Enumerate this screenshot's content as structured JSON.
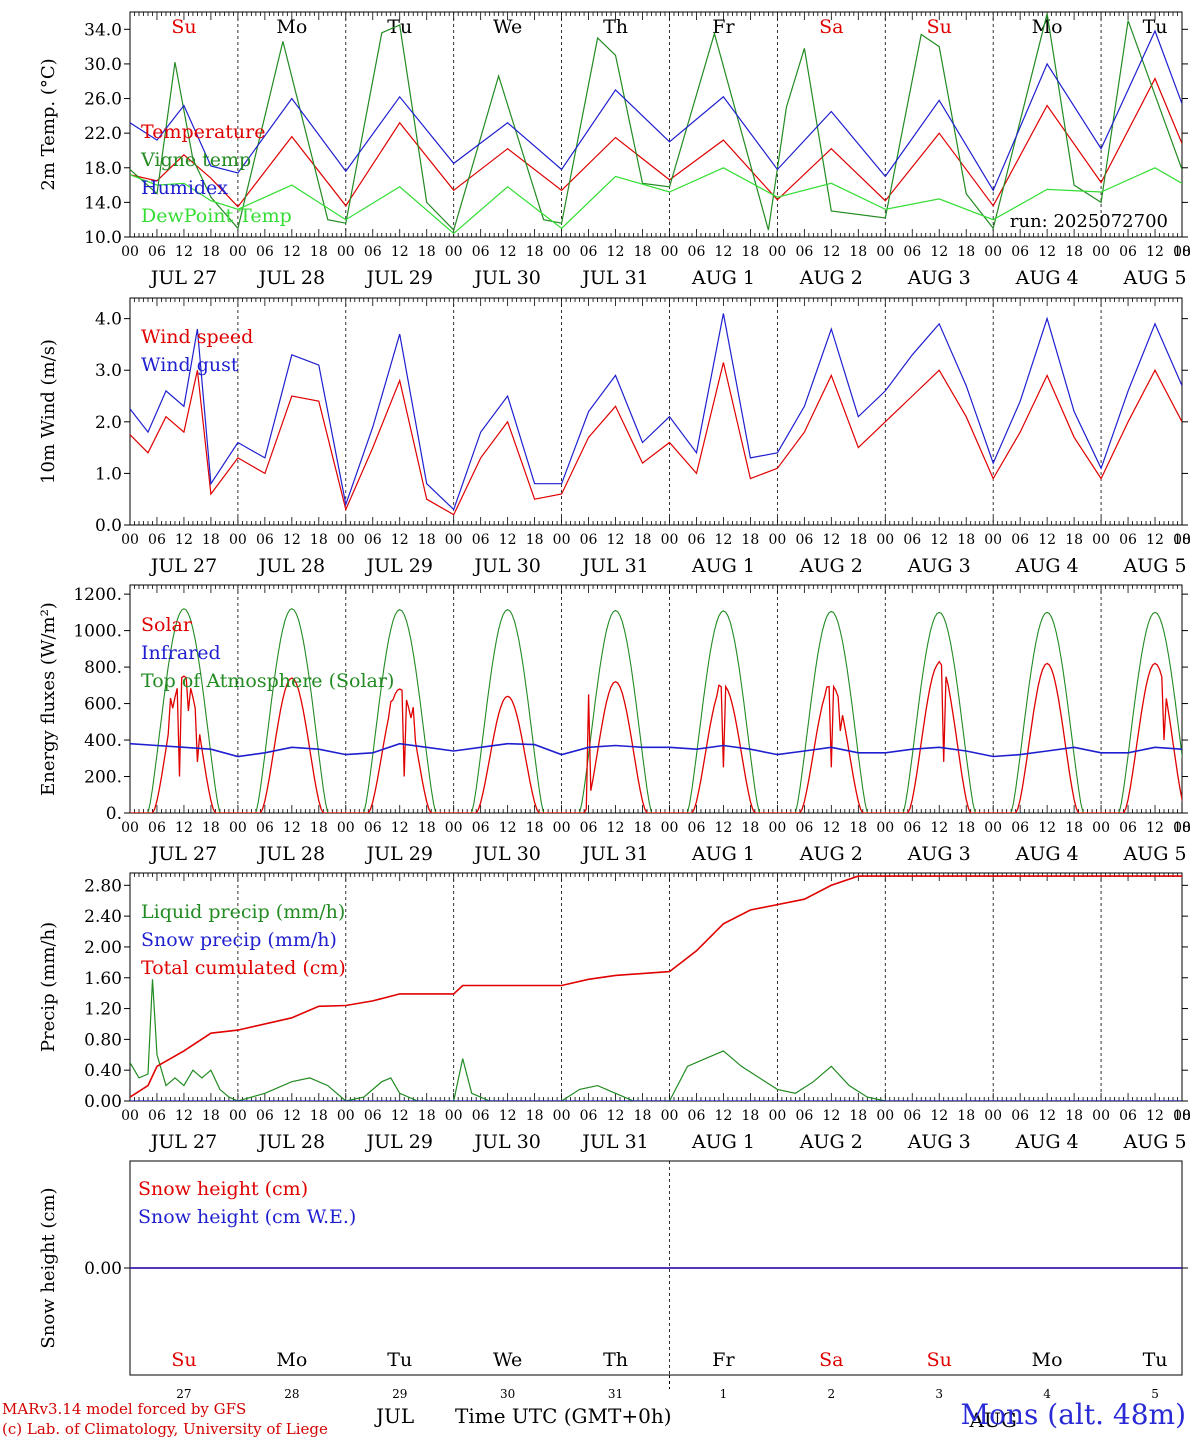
{
  "days": {
    "weekday_labels": [
      "Su",
      "Mo",
      "Tu",
      "We",
      "Th",
      "Fr",
      "Sa",
      "Su",
      "Mo",
      "Tu"
    ],
    "weekday_colors": [
      "#e00000",
      "#000000",
      "#000000",
      "#000000",
      "#000000",
      "#000000",
      "#e00000",
      "#e00000",
      "#000000",
      "#000000"
    ],
    "date_labels": [
      "JUL 27",
      "JUL 28",
      "JUL 29",
      "JUL 30",
      "JUL 31",
      "AUG  1",
      "AUG  2",
      "AUG  3",
      "AUG  4",
      "AUG  5"
    ],
    "hour_ticks": [
      "00",
      "06",
      "12",
      "18"
    ],
    "day_numbers": [
      "27",
      "28",
      "29",
      "30",
      "31",
      "1",
      "2",
      "3",
      "4",
      "5"
    ],
    "month_labels": [
      "JUL",
      "AUG"
    ]
  },
  "chart_data": [
    {
      "id": "temp",
      "type": "line",
      "ylabel": "2m Temp. (°C)",
      "ylim": [
        10,
        36
      ],
      "yticks": [
        10.0,
        14.0,
        18.0,
        22.0,
        26.0,
        30.0,
        34.0
      ],
      "ytick_labels": [
        "10.0",
        "14.0",
        "18.0",
        "22.0",
        "26.0",
        "30.0",
        "34.0"
      ],
      "annotation": "run: 2025072700",
      "x_unit": "hours since JUL 27 00 UTC",
      "series": [
        {
          "name": "Temperature",
          "color": "#e00000",
          "x": [
            0,
            6,
            12,
            18,
            24,
            36,
            48,
            60,
            72,
            84,
            96,
            108,
            120,
            132,
            144,
            156,
            168,
            180,
            192,
            204,
            216,
            228,
            234
          ],
          "y": [
            17.2,
            16.5,
            19.5,
            16.8,
            13.5,
            21.6,
            13.6,
            23.2,
            15.4,
            20.2,
            15.4,
            21.5,
            16.6,
            21.2,
            14.3,
            20.2,
            14.2,
            22.0,
            13.6,
            25.2,
            16.3,
            28.3,
            20.8
          ]
        },
        {
          "name": "Vigne temp",
          "color": "#228b22",
          "x": [
            0,
            6,
            10,
            14,
            18,
            24,
            34,
            44,
            48,
            56,
            60,
            66,
            72,
            82,
            92,
            96,
            104,
            108,
            114,
            120,
            130,
            142,
            146,
            150,
            156,
            168,
            176,
            180,
            186,
            192,
            204,
            210,
            216,
            222,
            234
          ],
          "y": [
            17.8,
            15.0,
            30.2,
            19.0,
            14.6,
            11.0,
            32.6,
            12.0,
            11.6,
            33.6,
            34.5,
            14.0,
            10.8,
            28.6,
            12.0,
            11.6,
            33.0,
            31.0,
            16.2,
            15.8,
            33.5,
            10.8,
            25.0,
            31.8,
            13.0,
            12.2,
            33.4,
            32.0,
            15.0,
            11.0,
            35.8,
            16.0,
            14.0,
            35.0,
            17.8
          ]
        },
        {
          "name": "Humidex",
          "color": "#1f1fd0",
          "x": [
            0,
            6,
            12,
            18,
            24,
            36,
            48,
            60,
            72,
            84,
            96,
            108,
            120,
            132,
            144,
            156,
            168,
            180,
            192,
            204,
            216,
            228,
            234
          ],
          "y": [
            23.2,
            21.2,
            25.2,
            18.2,
            17.4,
            26.0,
            17.6,
            26.2,
            18.5,
            23.2,
            17.8,
            27.0,
            21.0,
            26.2,
            17.8,
            24.5,
            17.0,
            25.8,
            15.4,
            30.0,
            20.2,
            33.8,
            25.4
          ]
        },
        {
          "name": "DewPoint Temp",
          "color": "#33dd33",
          "x": [
            0,
            6,
            12,
            18,
            24,
            36,
            48,
            60,
            72,
            84,
            96,
            108,
            120,
            132,
            144,
            156,
            168,
            180,
            192,
            204,
            216,
            228,
            234
          ],
          "y": [
            17.2,
            16.0,
            16.2,
            14.2,
            13.2,
            16.0,
            12.0,
            15.8,
            10.4,
            15.8,
            11.0,
            17.0,
            15.2,
            18.0,
            14.6,
            16.2,
            13.2,
            14.4,
            12.0,
            15.5,
            15.2,
            18.0,
            16.2
          ]
        }
      ]
    },
    {
      "id": "wind",
      "type": "line",
      "ylabel": "10m Wind (m/s)",
      "ylim": [
        0,
        4.4
      ],
      "yticks": [
        0.0,
        1.0,
        2.0,
        3.0,
        4.0
      ],
      "ytick_labels": [
        "0.0",
        "1.0",
        "2.0",
        "3.0",
        "4.0"
      ],
      "x_unit": "hours since JUL 27 00 UTC",
      "series": [
        {
          "name": "Wind speed",
          "color": "#e00000",
          "x": [
            0,
            4,
            8,
            12,
            15,
            18,
            24,
            30,
            36,
            42,
            48,
            54,
            60,
            66,
            72,
            78,
            84,
            90,
            96,
            102,
            108,
            114,
            120,
            126,
            132,
            138,
            144,
            150,
            156,
            162,
            168,
            174,
            180,
            186,
            192,
            198,
            204,
            210,
            216,
            222,
            228,
            234
          ],
          "y": [
            1.75,
            1.4,
            2.1,
            1.8,
            3.0,
            0.6,
            1.3,
            1.0,
            2.5,
            2.4,
            0.3,
            1.5,
            2.8,
            0.5,
            0.2,
            1.3,
            2.0,
            0.5,
            0.6,
            1.7,
            2.3,
            1.2,
            1.6,
            1.0,
            3.15,
            0.9,
            1.1,
            1.8,
            2.9,
            1.5,
            2.0,
            2.5,
            3.0,
            2.1,
            0.9,
            1.8,
            2.9,
            1.7,
            0.9,
            2.0,
            3.0,
            2.0
          ]
        },
        {
          "name": "Wind gust",
          "color": "#1f1fd0",
          "x": [
            0,
            4,
            8,
            12,
            15,
            18,
            24,
            30,
            36,
            42,
            48,
            54,
            60,
            66,
            72,
            78,
            84,
            90,
            96,
            102,
            108,
            114,
            120,
            126,
            132,
            138,
            144,
            150,
            156,
            162,
            168,
            174,
            180,
            186,
            192,
            198,
            204,
            210,
            216,
            222,
            228,
            234
          ],
          "y": [
            2.25,
            1.8,
            2.6,
            2.3,
            3.8,
            0.8,
            1.6,
            1.3,
            3.3,
            3.1,
            0.4,
            1.9,
            3.7,
            0.8,
            0.3,
            1.8,
            2.5,
            0.8,
            0.8,
            2.2,
            2.9,
            1.6,
            2.1,
            1.4,
            4.1,
            1.3,
            1.4,
            2.3,
            3.8,
            2.1,
            2.6,
            3.3,
            3.9,
            2.7,
            1.2,
            2.4,
            4.0,
            2.2,
            1.1,
            2.6,
            3.9,
            2.7
          ]
        }
      ]
    },
    {
      "id": "energy",
      "type": "line",
      "ylabel": "Energy fluxes (W/m²)",
      "ylim": [
        0,
        1250
      ],
      "yticks": [
        0,
        200,
        400,
        600,
        800,
        1000,
        1200
      ],
      "ytick_labels": [
        "0.",
        "200.",
        "400.",
        "600.",
        "800.",
        "1000.",
        "1200."
      ],
      "x_unit": "hours since JUL 27 00 UTC",
      "toa_peak": [
        1120,
        1120,
        1115,
        1115,
        1110,
        1108,
        1105,
        1100,
        1100,
        1100
      ],
      "solar_peak": [
        750,
        740,
        680,
        640,
        720,
        700,
        700,
        820,
        820,
        820
      ],
      "solar_spikes": [
        [
          9,
          630
        ],
        [
          11,
          200
        ],
        [
          13,
          560
        ],
        [
          15,
          280
        ],
        [
          58,
          610
        ],
        [
          61,
          200
        ],
        [
          63,
          580
        ],
        [
          102,
          650
        ],
        [
          131,
          700
        ],
        [
          132,
          250
        ],
        [
          155,
          690
        ],
        [
          156,
          250
        ],
        [
          158,
          450
        ],
        [
          180,
          830
        ],
        [
          181,
          280
        ],
        [
          182,
          700
        ],
        [
          230,
          400
        ]
      ],
      "series": [
        {
          "name": "Solar",
          "color": "#e00000"
        },
        {
          "name": "Infrared",
          "color": "#1f1fd0",
          "x": [
            0,
            6,
            12,
            18,
            24,
            30,
            36,
            42,
            48,
            54,
            60,
            66,
            72,
            78,
            84,
            90,
            96,
            102,
            108,
            114,
            120,
            126,
            132,
            138,
            144,
            150,
            156,
            162,
            168,
            174,
            180,
            186,
            192,
            198,
            204,
            210,
            216,
            222,
            228,
            234
          ],
          "y": [
            380,
            370,
            360,
            350,
            310,
            330,
            360,
            350,
            320,
            330,
            380,
            360,
            340,
            360,
            380,
            375,
            320,
            360,
            370,
            360,
            360,
            350,
            370,
            350,
            320,
            340,
            360,
            330,
            330,
            350,
            360,
            340,
            310,
            320,
            340,
            360,
            330,
            330,
            360,
            350
          ]
        },
        {
          "name": "Top of Atmosphere (Solar)",
          "color": "#228b22"
        }
      ]
    },
    {
      "id": "precip",
      "type": "line",
      "ylabel": "Precip (mm/h)",
      "ylim": [
        0,
        2.96
      ],
      "yticks": [
        0.0,
        0.4,
        0.8,
        1.2,
        1.6,
        2.0,
        2.4,
        2.8
      ],
      "ytick_labels": [
        "0.00",
        "0.40",
        "0.80",
        "1.20",
        "1.60",
        "2.00",
        "2.40",
        "2.80"
      ],
      "x_unit": "hours since JUL 27 00 UTC",
      "series": [
        {
          "name": "Liquid precip (mm/h)",
          "color": "#228b22",
          "x": [
            0,
            2,
            4,
            5,
            6,
            8,
            10,
            12,
            14,
            16,
            18,
            20,
            22,
            24,
            30,
            36,
            40,
            44,
            48,
            52,
            56,
            58,
            60,
            64,
            72,
            74,
            76,
            80,
            84,
            96,
            100,
            104,
            108,
            112,
            116,
            120,
            124,
            128,
            132,
            136,
            140,
            144,
            148,
            152,
            156,
            160,
            164,
            168,
            234
          ],
          "y": [
            0.5,
            0.3,
            0.35,
            1.58,
            0.6,
            0.2,
            0.3,
            0.2,
            0.4,
            0.3,
            0.4,
            0.15,
            0.05,
            0,
            0.1,
            0.25,
            0.3,
            0.2,
            0,
            0.05,
            0.25,
            0.3,
            0.1,
            0,
            0,
            0.55,
            0.1,
            0,
            0,
            0,
            0.15,
            0.2,
            0.1,
            0,
            0,
            0,
            0.45,
            0.55,
            0.65,
            0.45,
            0.3,
            0.15,
            0.1,
            0.25,
            0.45,
            0.2,
            0.05,
            0,
            0
          ]
        },
        {
          "name": "Snow precip (mm/h)",
          "color": "#1f1fd0",
          "x": [
            0,
            234
          ],
          "y": [
            0,
            0
          ]
        },
        {
          "name": "Total cumulated (cm)",
          "color": "#e00000",
          "x": [
            0,
            4,
            6,
            12,
            18,
            24,
            36,
            42,
            48,
            54,
            60,
            72,
            74,
            84,
            96,
            102,
            108,
            120,
            126,
            132,
            138,
            144,
            150,
            156,
            162,
            234
          ],
          "y": [
            0.05,
            0.2,
            0.45,
            0.65,
            0.88,
            0.92,
            1.08,
            1.23,
            1.24,
            1.3,
            1.39,
            1.39,
            1.5,
            1.5,
            1.5,
            1.58,
            1.63,
            1.68,
            1.95,
            2.3,
            2.48,
            2.55,
            2.62,
            2.8,
            2.92,
            2.92
          ]
        }
      ]
    },
    {
      "id": "snow",
      "type": "line",
      "ylabel": "Snow height (cm)",
      "ylim": [
        -1,
        1
      ],
      "yticks": [
        0.0
      ],
      "ytick_labels": [
        "0.00"
      ],
      "x_unit": "hours since JUL 27 00 UTC",
      "series": [
        {
          "name": "Snow height (cm)",
          "color": "#e00000",
          "x": [
            0,
            234
          ],
          "y": [
            0,
            0
          ]
        },
        {
          "name": "Snow height (cm W.E.)",
          "color": "#1f1fd0",
          "x": [
            0,
            234
          ],
          "y": [
            0,
            0
          ]
        }
      ]
    }
  ],
  "footer": {
    "line1": "MARv3.14 model forced by GFS",
    "line2": "(c) Lab. of Climatology, University of Liege",
    "time_label": "Time UTC (GMT+0h)",
    "station": "Mons (alt. 48m)"
  }
}
